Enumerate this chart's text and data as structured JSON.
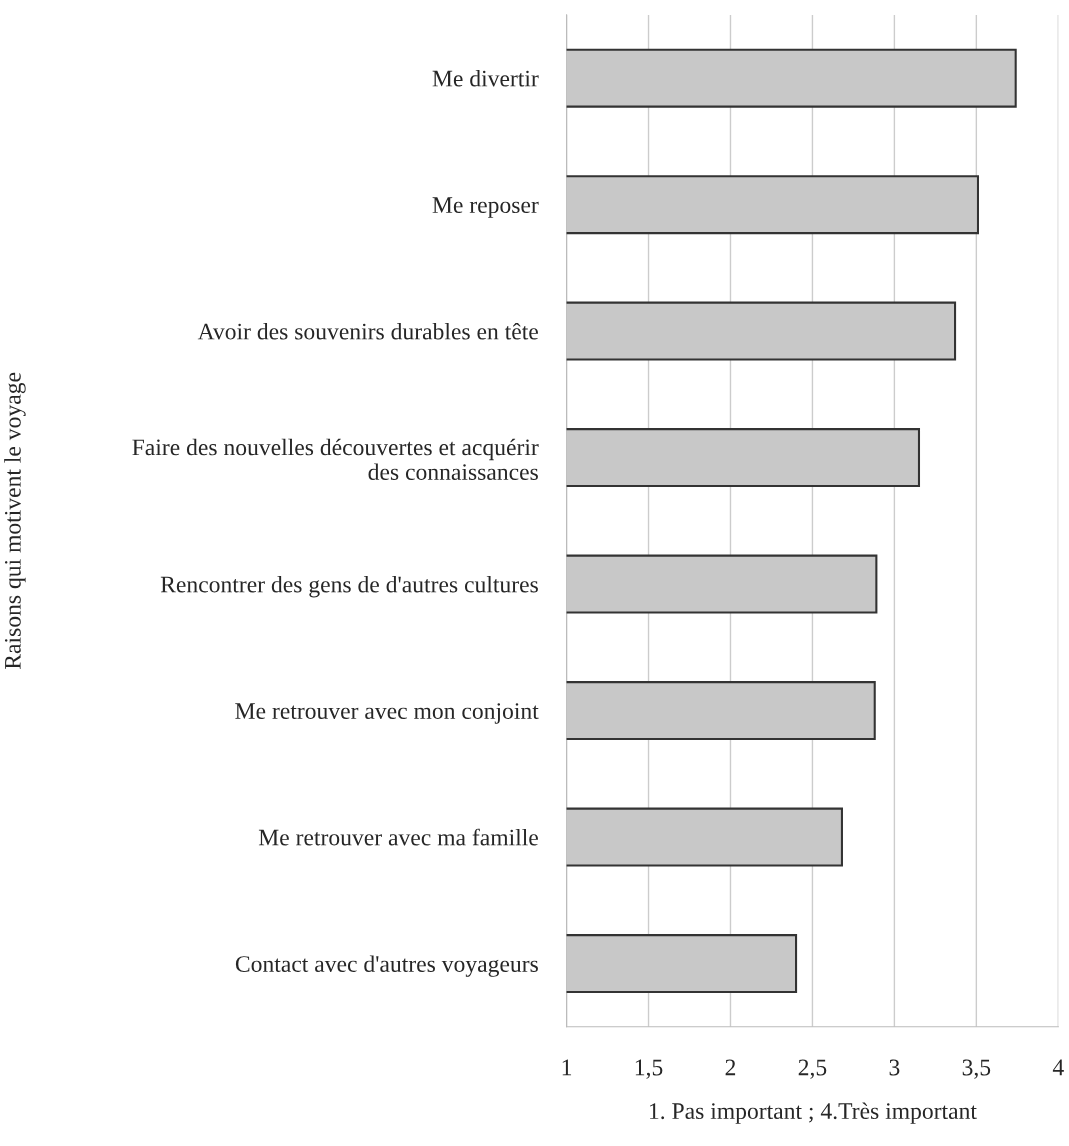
{
  "chart_data": {
    "type": "bar",
    "orientation": "horizontal",
    "categories": [
      "Me divertir",
      "Me reposer",
      "Avoir des souvenirs durables en tête",
      "Faire des nouvelles découvertes et acquérir\ndes connaissances",
      "Rencontrer des gens de d'autres cultures",
      "Me retrouver avec mon conjoint",
      "Me retrouver avec ma famille",
      "Contact avec d'autres voyageurs"
    ],
    "values": [
      3.74,
      3.51,
      3.37,
      3.15,
      2.89,
      2.88,
      2.68,
      2.4
    ],
    "color": "#c8c8c8",
    "xlim": [
      1,
      4
    ],
    "xticks": [
      {
        "value": 1,
        "label": "1"
      },
      {
        "value": 1.5,
        "label": "1,5"
      },
      {
        "value": 2,
        "label": "2"
      },
      {
        "value": 2.5,
        "label": "2,5"
      },
      {
        "value": 3,
        "label": "3"
      },
      {
        "value": 3.5,
        "label": "3,5"
      },
      {
        "value": 4,
        "label": "4"
      }
    ],
    "xlabel": "1. Pas important ; 4.Très important",
    "ylabel": "Raisons qui motivent le voyage",
    "grid": "x"
  }
}
